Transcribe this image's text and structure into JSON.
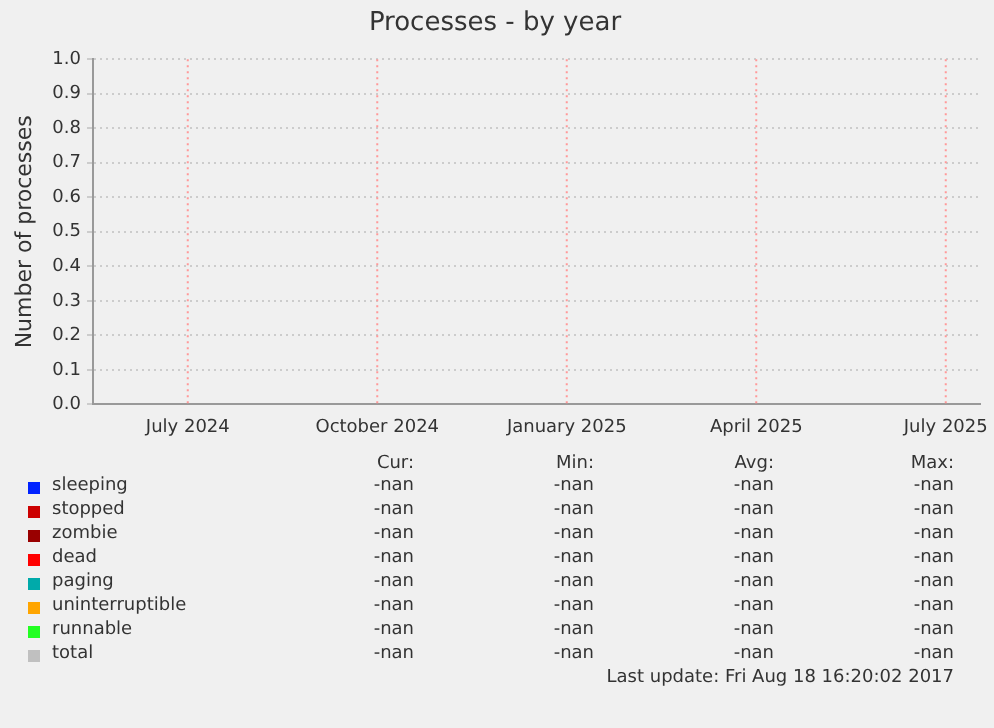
{
  "chart_data": {
    "type": "line",
    "title": "Processes - by year",
    "ylabel": "Number of processes",
    "categories": [
      "July 2024",
      "October 2024",
      "January 2025",
      "April 2025",
      "July 2025"
    ],
    "ylim": [
      0,
      1
    ],
    "yticks": [
      {
        "value": 0,
        "label": "0.0"
      },
      {
        "value": 0.1,
        "label": "0.1"
      },
      {
        "value": 0.2,
        "label": "0.2"
      },
      {
        "value": 0.3,
        "label": "0.3"
      },
      {
        "value": 0.4,
        "label": "0.4"
      },
      {
        "value": 0.5,
        "label": "0.5"
      },
      {
        "value": 0.6,
        "label": "0.6"
      },
      {
        "value": 0.7,
        "label": "0.7"
      },
      {
        "value": 0.8,
        "label": "0.8"
      },
      {
        "value": 0.9,
        "label": "0.9"
      },
      {
        "value": 1,
        "label": "1.0"
      }
    ],
    "grid": "y",
    "legend": "bottom left",
    "ref_lines": [
      {
        "axis": "x",
        "value": "July 2024",
        "color": "#ff9999",
        "line_style": "dotted"
      },
      {
        "axis": "x",
        "value": "October 2024",
        "color": "#ff9999",
        "line_style": "dotted"
      },
      {
        "axis": "x",
        "value": "January 2025",
        "color": "#ff9999",
        "line_style": "dotted"
      },
      {
        "axis": "x",
        "value": "April 2025",
        "color": "#ff9999",
        "line_style": "dotted"
      },
      {
        "axis": "x",
        "value": "July 2025",
        "color": "#ff9999",
        "line_style": "dotted"
      }
    ],
    "series": [
      {
        "name": "sleeping",
        "color": "#0022ff",
        "values": [
          null,
          null,
          null,
          null,
          null
        ]
      },
      {
        "name": "stopped",
        "color": "#cc0000",
        "values": [
          null,
          null,
          null,
          null,
          null
        ]
      },
      {
        "name": "zombie",
        "color": "#990000",
        "values": [
          null,
          null,
          null,
          null,
          null
        ]
      },
      {
        "name": "dead",
        "color": "#ff0000",
        "values": [
          null,
          null,
          null,
          null,
          null
        ]
      },
      {
        "name": "paging",
        "color": "#00aaaa",
        "values": [
          null,
          null,
          null,
          null,
          null
        ]
      },
      {
        "name": "uninterruptible",
        "color": "#ffa500",
        "values": [
          null,
          null,
          null,
          null,
          null
        ]
      },
      {
        "name": "runnable",
        "color": "#22ff22",
        "values": [
          null,
          null,
          null,
          null,
          null
        ]
      },
      {
        "name": "total",
        "color": "#c0c0c0",
        "values": [
          null,
          null,
          null,
          null,
          null
        ]
      }
    ],
    "annotations": [
      "Cur:",
      "Min:",
      "Avg:",
      "Max:",
      "-nan",
      "-nan",
      "-nan",
      "-nan",
      "-nan",
      "-nan",
      "-nan",
      "-nan",
      "-nan",
      "-nan",
      "-nan",
      "-nan",
      "-nan",
      "-nan",
      "-nan",
      "-nan",
      "-nan",
      "-nan",
      "-nan",
      "-nan",
      "-nan",
      "-nan",
      "-nan",
      "-nan",
      "-nan",
      "-nan",
      "-nan",
      "-nan",
      "-nan",
      "-nan",
      "-nan",
      "-nan",
      "Last update: Fri Aug 18 16:20:02 2017"
    ]
  }
}
